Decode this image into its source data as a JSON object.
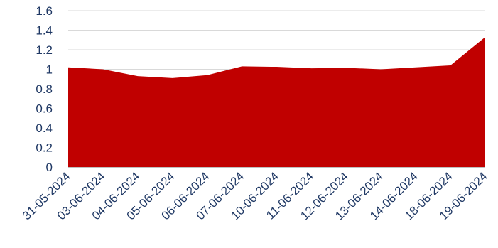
{
  "chart_data": {
    "type": "area",
    "title": "",
    "xlabel": "",
    "ylabel": "",
    "categories": [
      "31-05-2024",
      "03-06-2024",
      "04-06-2024",
      "05-06-2024",
      "06-06-2024",
      "07-06-2024",
      "10-06-2024",
      "11-06-2024",
      "12-06-2024",
      "13-06-2024",
      "14-06-2024",
      "18-06-2024",
      "19-06-2024"
    ],
    "series": [
      {
        "values": [
          1.02,
          1.0,
          0.93,
          0.91,
          0.94,
          1.03,
          1.025,
          1.01,
          1.015,
          1.0,
          1.02,
          1.04,
          1.33
        ]
      }
    ],
    "ylim": [
      0,
      1.6
    ],
    "yticks": [
      "0",
      "0.2",
      "0.4",
      "0.6",
      "0.8",
      "1",
      "1.2",
      "1.4",
      "1.6"
    ],
    "grid": true,
    "legend": "none",
    "colors": {
      "area": "#c00000",
      "grid": "#d9d9d9",
      "axis": "#bfbfbf",
      "text": "#1f3864"
    }
  }
}
